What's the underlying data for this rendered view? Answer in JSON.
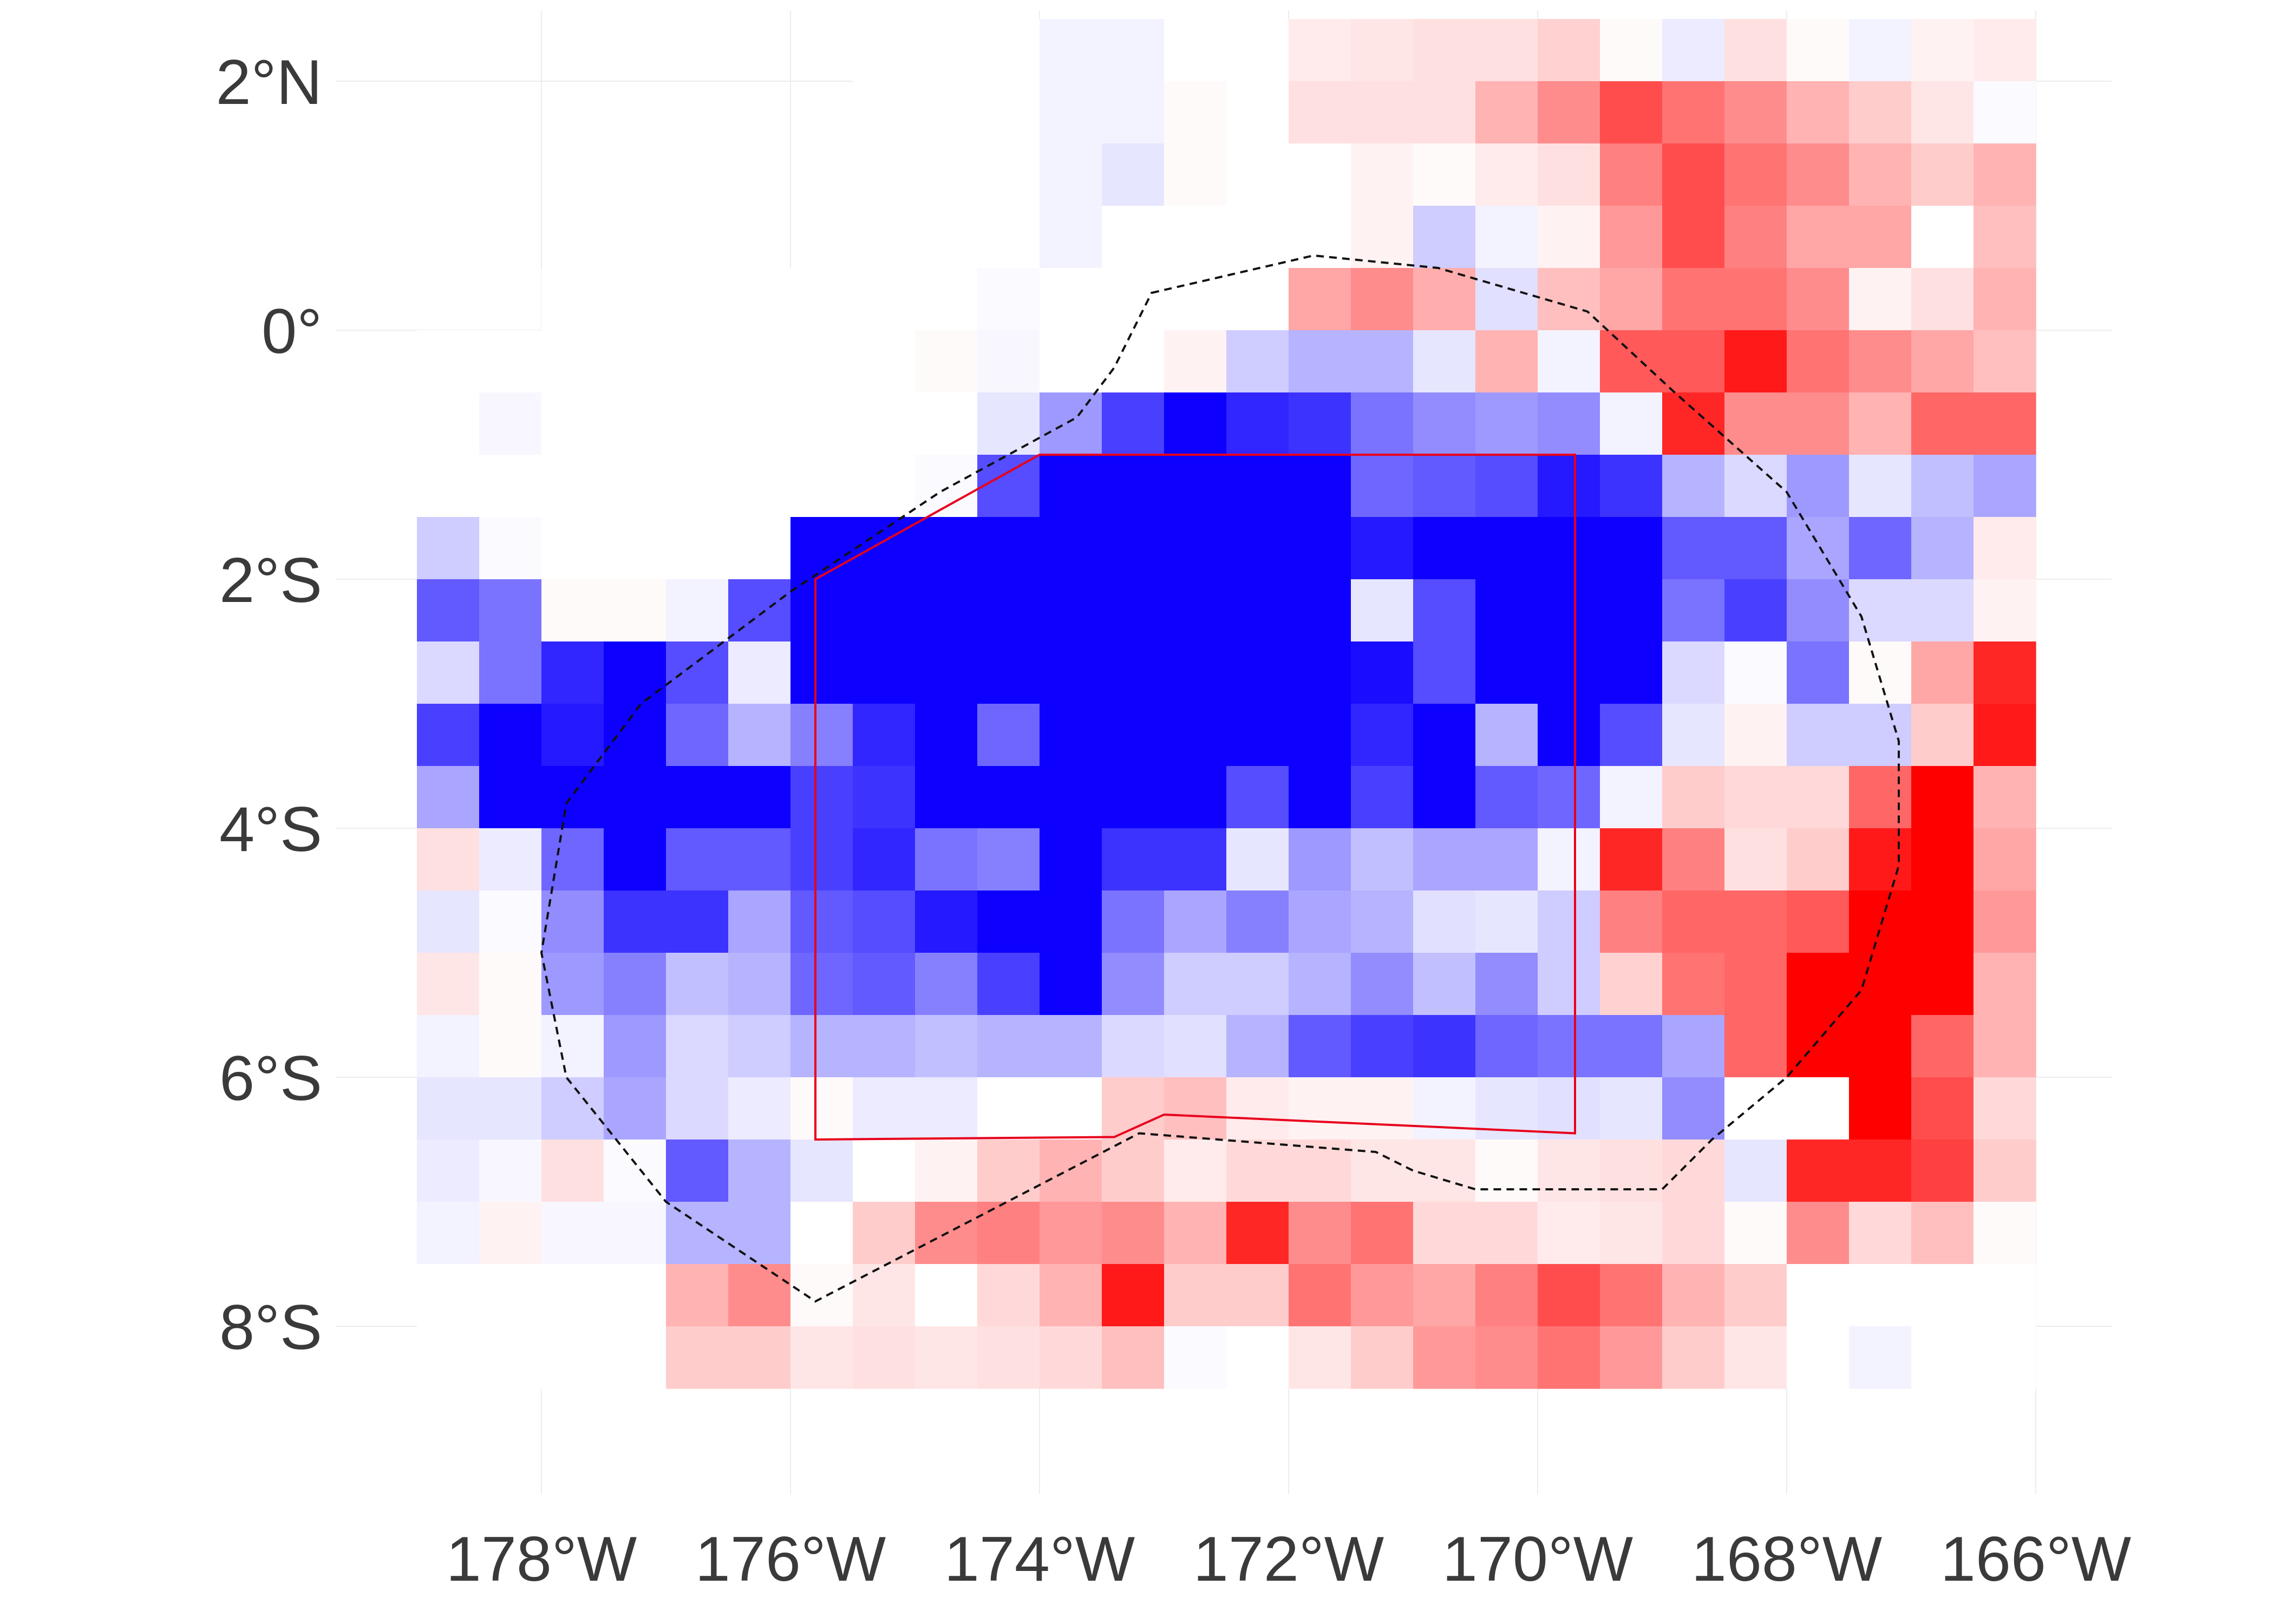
{
  "map": {
    "lat_axis": {
      "ticks": [
        2,
        0,
        -2,
        -4,
        -6,
        -8
      ],
      "labels": [
        "2°N",
        "0°",
        "2°S",
        "4°S",
        "6°S",
        "8°S"
      ]
    },
    "lon_axis": {
      "ticks": [
        -178,
        -176,
        -174,
        -172,
        -170,
        -168,
        -166
      ],
      "labels": [
        "178°W",
        "176°W",
        "174°W",
        "172°W",
        "170°W",
        "168°W",
        "166°W"
      ]
    },
    "lon_range": [
      -180,
      -165
    ],
    "lat_range": [
      -9.5,
      2.5
    ],
    "grid": true,
    "colors": {
      "negative": "#0000ff",
      "neutral": "#ffffff",
      "positive": "#ff0000",
      "study_box": "#e8001c",
      "outline": "#111111"
    },
    "heatmap": {
      "cell_deg": 0.5,
      "lon0": -179,
      "lat0": 2.5,
      "scale_note": "values in [-1,1]; -1 = blue, +1 = red",
      "rows": [
        [
          null,
          null,
          null,
          null,
          null,
          null,
          null,
          0,
          0,
          0,
          -0.05,
          -0.05,
          0,
          0,
          0.08,
          0.1,
          0.12,
          0.12,
          0.18,
          0.02,
          -0.08,
          0.12,
          0.02,
          -0.05,
          0.05,
          0.08,
          0.08,
          0.02
        ],
        [
          null,
          null,
          null,
          null,
          null,
          null,
          null,
          0,
          0,
          0,
          -0.05,
          -0.05,
          0.02,
          0,
          0.12,
          0.12,
          0.12,
          0.3,
          0.45,
          0.7,
          0.55,
          0.45,
          0.3,
          0.2,
          0.1,
          -0.02,
          0.3,
          0
        ],
        [
          null,
          null,
          null,
          null,
          null,
          null,
          null,
          0,
          0,
          0,
          -0.05,
          -0.1,
          0.02,
          0,
          0,
          0.05,
          0.02,
          0.08,
          0.12,
          0.5,
          0.7,
          0.55,
          0.45,
          0.3,
          0.2,
          0.3,
          0.15,
          0.12,
          -0.02
        ],
        [
          null,
          null,
          null,
          null,
          null,
          null,
          null,
          0,
          0,
          0,
          -0.05,
          0,
          0,
          0,
          0,
          0.05,
          -0.2,
          -0.05,
          0.05,
          0.4,
          0.7,
          0.5,
          0.35,
          0.35,
          0,
          0.25,
          0.2,
          -0.02,
          0.05
        ],
        [
          null,
          null,
          0,
          0,
          0,
          0,
          0,
          0,
          0,
          -0.02,
          0,
          0,
          0,
          0,
          0.35,
          0.45,
          0.32,
          -0.12,
          0.25,
          0.35,
          0.55,
          0.55,
          0.45,
          0.05,
          0.12,
          0.3,
          0.35,
          0.1,
          0
        ],
        [
          0,
          0,
          0,
          0,
          0,
          0,
          0,
          0,
          0.02,
          -0.03,
          0,
          0,
          0.05,
          -0.2,
          -0.3,
          -0.3,
          -0.1,
          0.3,
          -0.05,
          0.65,
          0.65,
          0.9,
          0.55,
          0.45,
          0.35,
          0.25,
          0.3,
          0.05
        ],
        [
          0,
          -0.03,
          0,
          0,
          0,
          0,
          0,
          0,
          0,
          -0.1,
          -0.4,
          -0.75,
          -1,
          -0.85,
          -0.8,
          -0.55,
          -0.45,
          -0.4,
          -0.45,
          -0.05,
          0.85,
          0.45,
          0.45,
          0.3,
          0.6,
          0.6,
          0.05
        ],
        [
          0,
          0,
          0,
          0,
          0,
          0,
          0,
          0,
          -0.02,
          -0.7,
          -1,
          -1,
          -1,
          -1,
          -1,
          -0.6,
          -0.65,
          -0.7,
          -0.9,
          -0.8,
          -0.3,
          -0.15,
          -0.4,
          -0.1,
          -0.25,
          -0.35,
          0.05
        ],
        [
          -0.2,
          -0.02,
          0,
          0,
          0,
          0,
          -1,
          -1,
          -1,
          -1,
          -1,
          -1,
          -1,
          -1,
          -1,
          -0.9,
          -1,
          -1,
          -1,
          -1,
          -0.65,
          -0.65,
          -0.35,
          -0.6,
          -0.3,
          0.08,
          0.15
        ],
        [
          -0.65,
          -0.55,
          0.02,
          0.02,
          -0.05,
          -0.7,
          -1,
          -1,
          -1,
          -1,
          -1,
          -1,
          -1,
          -1,
          -1,
          -0.1,
          -0.7,
          -1,
          -1,
          -1,
          -0.55,
          -0.75,
          -0.45,
          -0.15,
          -0.15,
          0.05,
          0
        ],
        [
          -0.15,
          -0.55,
          -0.85,
          -1,
          -0.7,
          -0.08,
          -1,
          -1,
          -1,
          -1,
          -1,
          -1,
          -1,
          -1,
          -1,
          -0.95,
          -0.7,
          -1,
          -1,
          -1,
          -0.15,
          -0.02,
          -0.55,
          0.02,
          0.35,
          0.85,
          0.22
        ],
        [
          -0.75,
          -1,
          -0.9,
          -1,
          -0.6,
          -0.3,
          -0.5,
          -0.85,
          -1,
          -0.6,
          -1,
          -1,
          -1,
          -1,
          -1,
          -0.85,
          -1,
          -0.3,
          -1,
          -0.7,
          -0.1,
          0.05,
          -0.2,
          -0.2,
          0.2,
          0.9,
          0.15
        ],
        [
          -0.35,
          -1,
          -1,
          -1,
          -1,
          -1,
          -0.75,
          -0.8,
          -1,
          -1,
          -1,
          -1,
          -1,
          -0.7,
          -1,
          -0.75,
          -1,
          -0.65,
          -0.6,
          -0.05,
          0.2,
          0.15,
          0.15,
          0.6,
          1,
          0.3
        ],
        [
          0.12,
          -0.08,
          -0.6,
          -1,
          -0.65,
          -0.65,
          -0.75,
          -0.85,
          -0.55,
          -0.5,
          -1,
          -0.8,
          -0.8,
          -0.1,
          -0.4,
          -0.25,
          -0.35,
          -0.35,
          -0.05,
          0.85,
          0.5,
          0.12,
          0.2,
          0.9,
          1,
          0.35
        ],
        [
          -0.1,
          -0.02,
          -0.45,
          -0.8,
          -0.8,
          -0.35,
          -0.65,
          -0.7,
          -0.9,
          -1,
          -1,
          -0.55,
          -0.35,
          -0.5,
          -0.35,
          -0.3,
          -0.12,
          -0.1,
          -0.2,
          0.5,
          0.6,
          0.6,
          0.65,
          1,
          1,
          0.4
        ],
        [
          0.1,
          0.02,
          -0.4,
          -0.5,
          -0.25,
          -0.3,
          -0.6,
          -0.65,
          -0.5,
          -0.75,
          -1,
          -0.45,
          -0.2,
          -0.2,
          -0.3,
          -0.45,
          -0.25,
          -0.45,
          -0.2,
          0.18,
          0.55,
          0.6,
          1,
          1,
          1,
          0.3
        ],
        [
          -0.05,
          0.02,
          -0.05,
          -0.4,
          -0.15,
          -0.2,
          -0.3,
          -0.3,
          -0.25,
          -0.3,
          -0.3,
          -0.15,
          -0.12,
          -0.3,
          -0.65,
          -0.75,
          -0.8,
          -0.6,
          -0.55,
          -0.55,
          -0.35,
          0.6,
          1,
          1,
          0.6,
          0.3
        ],
        [
          -0.1,
          -0.1,
          -0.2,
          -0.35,
          -0.15,
          -0.08,
          0.02,
          -0.08,
          -0.08,
          0,
          0,
          0.2,
          0.25,
          0.08,
          0.05,
          0.05,
          -0.05,
          -0.1,
          -0.12,
          -0.1,
          -0.45,
          0,
          0,
          1,
          0.7,
          0.15
        ],
        [
          -0.08,
          -0.03,
          0.12,
          -0.02,
          -0.65,
          -0.3,
          -0.1,
          0,
          0.05,
          0.2,
          0.3,
          0.2,
          0.08,
          0.15,
          0.15,
          0.1,
          0.1,
          0.02,
          0.1,
          0.12,
          0.15,
          -0.1,
          0.85,
          0.85,
          0.75,
          0.2
        ],
        [
          -0.05,
          0.05,
          -0.03,
          -0.03,
          -0.3,
          -0.3,
          0,
          0.2,
          0.45,
          0.5,
          0.4,
          0.45,
          0.3,
          0.85,
          0.45,
          0.55,
          0.15,
          0.15,
          0.08,
          0.1,
          0.15,
          0.02,
          0.45,
          0.15,
          0.25,
          0.02
        ],
        [
          0,
          0,
          0,
          0,
          0.3,
          0.45,
          0.02,
          0.1,
          0,
          0.15,
          0.3,
          0.9,
          0.2,
          0.2,
          0.55,
          0.4,
          0.35,
          0.5,
          0.7,
          0.55,
          0.3,
          0.2,
          0,
          0,
          0,
          0
        ],
        [
          0,
          0,
          0,
          0,
          0.2,
          0.2,
          0.1,
          0.12,
          0.1,
          0.12,
          0.15,
          0.25,
          -0.02,
          0,
          0.1,
          0.2,
          0.4,
          0.45,
          0.55,
          0.4,
          0.2,
          0.1,
          0,
          -0.05,
          0,
          0
        ]
      ]
    },
    "study_box": {
      "label": "",
      "polygon": [
        [
          -175.8,
          -2.0
        ],
        [
          -174.0,
          -1.0
        ],
        [
          -169.7,
          -1.0
        ],
        [
          -169.7,
          -6.45
        ],
        [
          -173.0,
          -6.3
        ],
        [
          -173.4,
          -6.48
        ],
        [
          -175.8,
          -6.5
        ]
      ]
    },
    "outline": {
      "label": "",
      "polygon": [
        [
          -173.1,
          0.3
        ],
        [
          -171.8,
          0.6
        ],
        [
          -170.8,
          0.5
        ],
        [
          -169.6,
          0.15
        ],
        [
          -168.9,
          -0.5
        ],
        [
          -168.0,
          -1.3
        ],
        [
          -167.4,
          -2.3
        ],
        [
          -167.1,
          -3.3
        ],
        [
          -167.1,
          -4.3
        ],
        [
          -167.4,
          -5.3
        ],
        [
          -168.0,
          -6.0
        ],
        [
          -168.6,
          -6.5
        ],
        [
          -169.0,
          -6.9
        ],
        [
          -170.5,
          -6.9
        ],
        [
          -171.0,
          -6.75
        ],
        [
          -171.3,
          -6.6
        ],
        [
          -173.2,
          -6.45
        ],
        [
          -175.8,
          -7.8
        ],
        [
          -177.0,
          -7.0
        ],
        [
          -177.8,
          -6.0
        ],
        [
          -178.0,
          -5.0
        ],
        [
          -177.8,
          -3.8
        ],
        [
          -177.2,
          -3.0
        ],
        [
          -176.0,
          -2.1
        ],
        [
          -174.8,
          -1.3
        ],
        [
          -173.7,
          -0.7
        ],
        [
          -173.4,
          -0.3
        ]
      ]
    }
  }
}
